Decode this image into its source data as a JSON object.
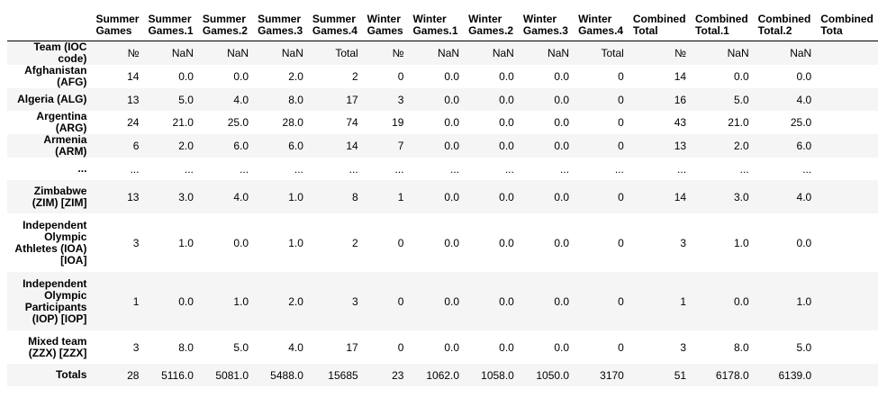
{
  "table": {
    "index_name": "Team (IOC code)",
    "columns": [
      "Summer Games",
      "Summer Games.1",
      "Summer Games.2",
      "Summer Games.3",
      "Summer Games.4",
      "Winter Games",
      "Winter Games.1",
      "Winter Games.2",
      "Winter Games.3",
      "Winter Games.4",
      "Combined Total",
      "Combined Total.1",
      "Combined Total.2",
      "Combined Tota"
    ],
    "subheader": [
      "№",
      "NaN",
      "NaN",
      "NaN",
      "Total",
      "№",
      "NaN",
      "NaN",
      "NaN",
      "Total",
      "№",
      "NaN",
      "NaN",
      ""
    ],
    "rows": [
      {
        "label": "Afghanistan (AFG)",
        "values": [
          "14",
          "0.0",
          "0.0",
          "2.0",
          "2",
          "0",
          "0.0",
          "0.0",
          "0.0",
          "0",
          "14",
          "0.0",
          "0.0",
          ""
        ]
      },
      {
        "label": "Algeria (ALG)",
        "values": [
          "13",
          "5.0",
          "4.0",
          "8.0",
          "17",
          "3",
          "0.0",
          "0.0",
          "0.0",
          "0",
          "16",
          "5.0",
          "4.0",
          ""
        ]
      },
      {
        "label": "Argentina (ARG)",
        "values": [
          "24",
          "21.0",
          "25.0",
          "28.0",
          "74",
          "19",
          "0.0",
          "0.0",
          "0.0",
          "0",
          "43",
          "21.0",
          "25.0",
          ""
        ]
      },
      {
        "label": "Armenia (ARM)",
        "values": [
          "6",
          "2.0",
          "6.0",
          "6.0",
          "14",
          "7",
          "0.0",
          "0.0",
          "0.0",
          "0",
          "13",
          "2.0",
          "6.0",
          ""
        ]
      },
      {
        "label": "...",
        "values": [
          "...",
          "...",
          "...",
          "...",
          "...",
          "...",
          "...",
          "...",
          "...",
          "...",
          "...",
          "...",
          "...",
          ""
        ]
      },
      {
        "label": "Zimbabwe (ZIM) [ZIM]",
        "values": [
          "13",
          "3.0",
          "4.0",
          "1.0",
          "8",
          "1",
          "0.0",
          "0.0",
          "0.0",
          "0",
          "14",
          "3.0",
          "4.0",
          ""
        ]
      },
      {
        "label": "Independent Olympic Athletes (IOA) [IOA]",
        "values": [
          "3",
          "1.0",
          "0.0",
          "1.0",
          "2",
          "0",
          "0.0",
          "0.0",
          "0.0",
          "0",
          "3",
          "1.0",
          "0.0",
          ""
        ]
      },
      {
        "label": "Independent Olympic Participants (IOP) [IOP]",
        "values": [
          "1",
          "0.0",
          "1.0",
          "2.0",
          "3",
          "0",
          "0.0",
          "0.0",
          "0.0",
          "0",
          "1",
          "0.0",
          "1.0",
          ""
        ]
      },
      {
        "label": "Mixed team (ZZX) [ZZX]",
        "values": [
          "3",
          "8.0",
          "5.0",
          "4.0",
          "17",
          "0",
          "0.0",
          "0.0",
          "0.0",
          "0",
          "3",
          "8.0",
          "5.0",
          ""
        ]
      },
      {
        "label": "Totals",
        "values": [
          "28",
          "5116.0",
          "5081.0",
          "5488.0",
          "15685",
          "23",
          "1062.0",
          "1058.0",
          "1050.0",
          "3170",
          "51",
          "6178.0",
          "6139.0",
          ""
        ]
      }
    ]
  }
}
